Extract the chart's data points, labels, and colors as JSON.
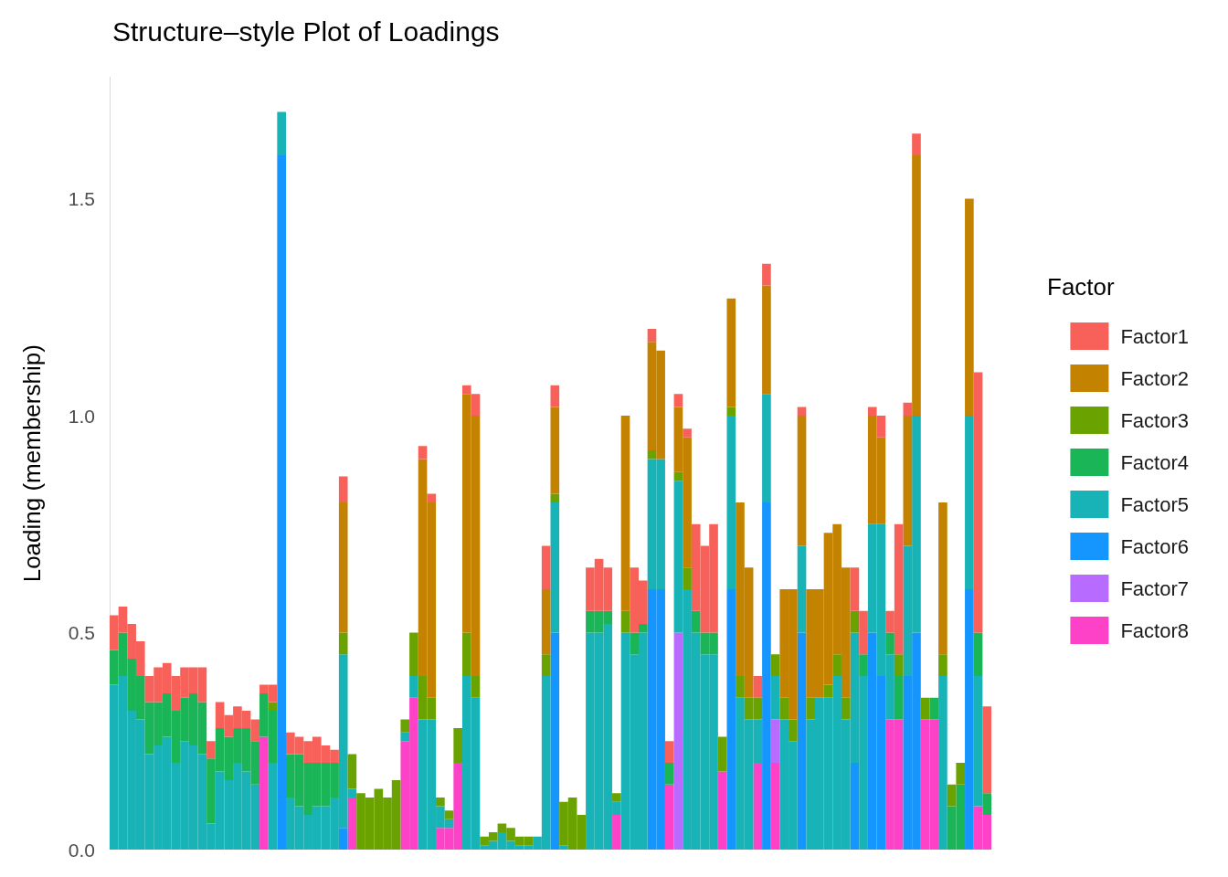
{
  "chart_data": {
    "type": "bar",
    "title": "Structure–style Plot of Loadings",
    "ylabel": "Loading (membership)",
    "legend_title": "Factor",
    "stacked": true,
    "grid": false,
    "legend": "right",
    "categories": [
      null,
      null,
      null,
      null,
      null,
      null,
      null,
      null,
      null,
      null,
      null,
      null,
      null,
      null,
      null,
      null,
      null,
      null,
      null,
      null,
      null,
      null,
      null,
      null,
      null,
      null,
      null,
      null,
      null,
      null,
      null,
      null,
      null,
      null,
      null,
      null,
      null,
      null,
      null,
      null,
      null,
      null,
      null,
      null,
      null,
      null,
      null,
      null,
      null,
      null,
      null,
      null,
      null,
      null,
      null,
      null,
      null,
      null,
      null,
      null,
      null,
      null,
      null,
      null,
      null,
      null,
      null,
      null,
      null,
      null,
      null,
      null,
      null,
      null,
      null,
      null,
      null,
      null,
      null,
      null,
      null,
      null,
      null,
      null,
      null,
      null,
      null,
      null,
      null,
      null,
      null,
      null,
      null,
      null,
      null,
      null,
      null,
      null,
      null,
      null
    ],
    "ylim": [
      0,
      1.78
    ],
    "yticks": [
      {
        "value": 0,
        "label": "0.0"
      },
      0.5,
      {
        "value": 1,
        "label": "1.0"
      },
      1.5
    ],
    "series": [
      {
        "name": "Factor8",
        "color": "#fd42c8",
        "values": [
          0,
          0,
          0,
          0,
          0,
          0,
          0,
          0,
          0,
          0,
          0,
          0,
          0,
          0,
          0,
          0,
          0,
          0.26,
          0,
          0,
          0,
          0,
          0,
          0,
          0,
          0,
          0,
          0.12,
          0,
          0,
          0,
          0,
          0,
          0.25,
          0.35,
          0,
          0,
          0.05,
          0.05,
          0.2,
          0,
          0,
          0,
          0,
          0,
          0,
          0,
          0,
          0,
          0,
          0,
          0,
          0,
          0,
          0,
          0,
          0,
          0.08,
          0,
          0,
          0,
          0,
          0,
          0.15,
          0,
          0,
          0,
          0,
          0,
          0.18,
          0,
          0,
          0,
          0.2,
          0,
          0.2,
          0,
          0,
          0,
          0,
          0,
          0,
          0,
          0,
          0,
          0,
          0,
          0,
          0.3,
          0.3,
          0,
          0,
          0.3,
          0.3,
          0,
          0,
          0,
          0,
          0.1,
          0.08
        ]
      },
      {
        "name": "Factor7",
        "color": "#b86bff",
        "values": [
          0,
          0,
          0,
          0,
          0,
          0,
          0,
          0,
          0,
          0,
          0,
          0,
          0,
          0,
          0,
          0,
          0,
          0,
          0,
          0,
          0,
          0,
          0,
          0,
          0,
          0,
          0,
          0,
          0,
          0,
          0,
          0,
          0,
          0,
          0,
          0,
          0,
          0,
          0,
          0,
          0,
          0,
          0,
          0,
          0,
          0,
          0,
          0,
          0,
          0,
          0,
          0,
          0,
          0,
          0,
          0,
          0,
          0,
          0,
          0,
          0,
          0,
          0,
          0,
          0.5,
          0,
          0,
          0,
          0,
          0,
          0,
          0,
          0,
          0,
          0,
          0.1,
          0,
          0,
          0,
          0,
          0,
          0,
          0,
          0,
          0,
          0,
          0,
          0,
          0,
          0,
          0,
          0,
          0,
          0,
          0,
          0,
          0,
          0,
          0,
          0
        ]
      },
      {
        "name": "Factor6",
        "color": "#1596ff",
        "values": [
          0,
          0,
          0,
          0,
          0,
          0,
          0,
          0,
          0,
          0,
          0,
          0,
          0,
          0,
          0,
          0,
          0,
          0,
          0,
          1.6,
          0,
          0,
          0,
          0,
          0,
          0,
          0.05,
          0,
          0,
          0,
          0,
          0,
          0,
          0,
          0,
          0,
          0,
          0,
          0,
          0,
          0,
          0,
          0,
          0,
          0,
          0,
          0,
          0,
          0,
          0,
          0.5,
          0,
          0,
          0,
          0,
          0,
          0,
          0,
          0,
          0,
          0,
          0.6,
          0.6,
          0,
          0,
          0,
          0,
          0,
          0,
          0,
          0.6,
          0,
          0,
          0,
          0.8,
          0,
          0,
          0,
          0.5,
          0,
          0,
          0,
          0,
          0,
          0.2,
          0,
          0.5,
          0.4,
          0,
          0,
          0.4,
          0.5,
          0,
          0,
          0,
          0,
          0,
          0.6,
          0,
          0
        ]
      },
      {
        "name": "Factor5",
        "color": "#18b3b7",
        "values": [
          0.38,
          0.4,
          0.32,
          0.3,
          0.22,
          0.24,
          0.26,
          0.2,
          0.25,
          0.24,
          0.22,
          0.06,
          0.18,
          0.16,
          0.2,
          0.18,
          0.15,
          0,
          0.2,
          0.1,
          0.12,
          0.1,
          0.08,
          0.1,
          0.1,
          0.12,
          0.4,
          0.02,
          0,
          0,
          0,
          0,
          0,
          0.02,
          0.05,
          0.3,
          0.3,
          0.05,
          0.02,
          0,
          0.4,
          0.35,
          0.01,
          0.02,
          0.04,
          0.02,
          0.01,
          0.01,
          0.03,
          0.4,
          0.3,
          0.01,
          0,
          0,
          0.5,
          0.5,
          0.52,
          0.03,
          0.5,
          0.45,
          0.5,
          0.3,
          0.3,
          0,
          0.35,
          0.6,
          0.5,
          0.45,
          0.45,
          0,
          0.4,
          0.35,
          0.3,
          0.1,
          0.25,
          0.1,
          0.3,
          0.25,
          0.2,
          0.3,
          0.35,
          0.35,
          0.4,
          0.3,
          0.3,
          0.4,
          0.25,
          0.35,
          0.15,
          0,
          0.3,
          0.5,
          0,
          0,
          0.4,
          0,
          0,
          0.4,
          0.3,
          0
        ]
      },
      {
        "name": "Factor4",
        "color": "#19b557",
        "values": [
          0.08,
          0.1,
          0.12,
          0.1,
          0.12,
          0.1,
          0.1,
          0.12,
          0.1,
          0.12,
          0.12,
          0.15,
          0.1,
          0.1,
          0.08,
          0.1,
          0.1,
          0.1,
          0.12,
          0,
          0.1,
          0.12,
          0.12,
          0.1,
          0.1,
          0.08,
          0,
          0,
          0,
          0,
          0,
          0,
          0,
          0,
          0,
          0,
          0,
          0,
          0,
          0,
          0,
          0,
          0,
          0,
          0,
          0,
          0,
          0,
          0,
          0,
          0,
          0,
          0,
          0,
          0.05,
          0.05,
          0.03,
          0,
          0,
          0.05,
          0.02,
          0,
          0,
          0.05,
          0,
          0,
          0.05,
          0.05,
          0.05,
          0,
          0,
          0,
          0,
          0,
          0,
          0,
          0,
          0,
          0,
          0,
          0,
          0,
          0,
          0,
          0,
          0.05,
          0,
          0,
          0.05,
          0.1,
          0,
          0,
          0,
          0.05,
          0,
          0.1,
          0.15,
          0,
          0.1,
          0.05
        ]
      },
      {
        "name": "Factor3",
        "color": "#6aa300",
        "values": [
          0,
          0,
          0,
          0,
          0,
          0,
          0,
          0,
          0,
          0,
          0,
          0,
          0,
          0,
          0,
          0,
          0,
          0,
          0.02,
          0,
          0,
          0,
          0,
          0,
          0,
          0,
          0.05,
          0.08,
          0.13,
          0.12,
          0.14,
          0.12,
          0.16,
          0.03,
          0.1,
          0.1,
          0.05,
          0.02,
          0.02,
          0.08,
          0.1,
          0.05,
          0.02,
          0.02,
          0.02,
          0.03,
          0.02,
          0.02,
          0,
          0.05,
          0.02,
          0.1,
          0.12,
          0.08,
          0,
          0,
          0,
          0.02,
          0.05,
          0,
          0,
          0.02,
          0,
          0,
          0.02,
          0.05,
          0,
          0,
          0,
          0.08,
          0.02,
          0.05,
          0.05,
          0.05,
          0,
          0.05,
          0.05,
          0.05,
          0,
          0.05,
          0,
          0.03,
          0.05,
          0.05,
          0.05,
          0,
          0,
          0,
          0,
          0.05,
          0,
          0,
          0.05,
          0,
          0.05,
          0.05,
          0.05,
          0,
          0,
          0
        ]
      },
      {
        "name": "Factor2",
        "color": "#c38200",
        "values": [
          0,
          0,
          0,
          0,
          0,
          0,
          0,
          0,
          0,
          0,
          0,
          0,
          0,
          0,
          0,
          0,
          0,
          0,
          0,
          0,
          0,
          0,
          0,
          0,
          0,
          0,
          0.3,
          0,
          0,
          0,
          0,
          0,
          0,
          0,
          0,
          0.5,
          0.45,
          0,
          0,
          0,
          0.55,
          0.6,
          0,
          0,
          0,
          0,
          0,
          0,
          0,
          0.15,
          0.2,
          0,
          0,
          0,
          0,
          0,
          0,
          0,
          0.45,
          0,
          0,
          0.25,
          0.25,
          0,
          0.15,
          0.3,
          0,
          0,
          0,
          0,
          0.25,
          0.4,
          0.3,
          0,
          0.25,
          0,
          0.25,
          0.3,
          0.3,
          0.25,
          0.25,
          0.35,
          0.3,
          0.3,
          0,
          0,
          0.25,
          0.2,
          0,
          0,
          0.3,
          0.6,
          0,
          0,
          0.35,
          0,
          0,
          0.5,
          0,
          0
        ]
      },
      {
        "name": "Factor1",
        "color": "#f8615a",
        "values": [
          0.08,
          0.06,
          0.08,
          0.08,
          0.06,
          0.08,
          0.07,
          0.08,
          0.07,
          0.06,
          0.08,
          0.04,
          0.06,
          0.05,
          0.05,
          0.04,
          0.05,
          0.02,
          0.04,
          0,
          0.05,
          0.04,
          0.05,
          0.06,
          0.04,
          0.03,
          0.06,
          0,
          0,
          0,
          0,
          0,
          0,
          0,
          0,
          0.03,
          0.02,
          0,
          0,
          0,
          0.02,
          0.05,
          0,
          0,
          0,
          0,
          0,
          0,
          0,
          0.1,
          0.05,
          0,
          0,
          0,
          0.1,
          0.12,
          0.1,
          0,
          0,
          0.15,
          0.1,
          0.03,
          0,
          0.05,
          0.03,
          0.02,
          0.2,
          0.2,
          0.25,
          0,
          0,
          0,
          0,
          0.05,
          0.05,
          0,
          0,
          0,
          0.02,
          0,
          0,
          0,
          0,
          0,
          0.1,
          0.1,
          0.02,
          0.05,
          0.05,
          0.3,
          0.03,
          0.05,
          0,
          0,
          0,
          0,
          0,
          0,
          0.6,
          0.2
        ]
      }
    ]
  }
}
